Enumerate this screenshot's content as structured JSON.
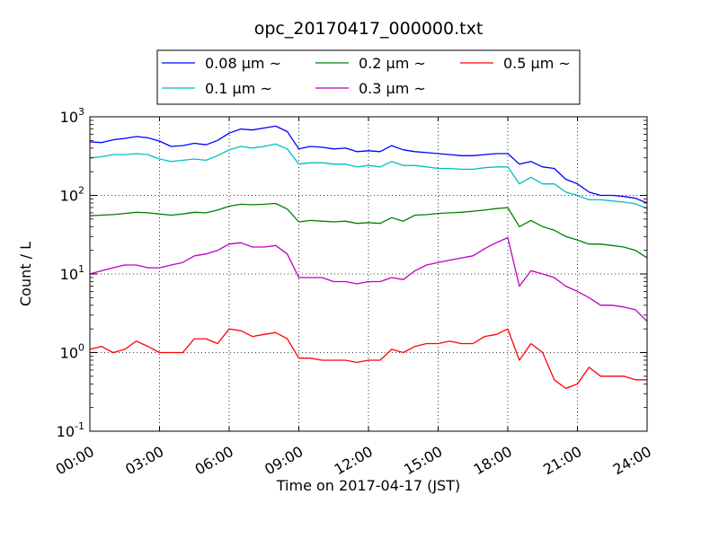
{
  "chart_data": {
    "type": "line",
    "title": "opc_20170417_000000.txt",
    "xlabel": "Time on 2017-04-17 (JST)",
    "ylabel": "Count / L",
    "yscale": "log",
    "xlim": [
      0,
      24
    ],
    "ylim": [
      0.1,
      1000
    ],
    "grid": true,
    "legend_position": "top",
    "x_ticks": [
      0,
      3,
      6,
      9,
      12,
      15,
      18,
      21,
      24
    ],
    "x_tick_labels": [
      "00:00",
      "03:00",
      "06:00",
      "09:00",
      "12:00",
      "15:00",
      "18:00",
      "21:00",
      "24:00"
    ],
    "y_ticks": [
      0.1,
      1,
      10,
      100,
      1000
    ],
    "y_tick_labels": [
      {
        "base": "10",
        "exp": "-1"
      },
      {
        "base": "10",
        "exp": "0"
      },
      {
        "base": "10",
        "exp": "1"
      },
      {
        "base": "10",
        "exp": "2"
      },
      {
        "base": "10",
        "exp": "3"
      }
    ],
    "x": [
      0,
      0.5,
      1,
      1.5,
      2,
      2.5,
      3,
      3.5,
      4,
      4.5,
      5,
      5.5,
      6,
      6.5,
      7,
      7.5,
      8,
      8.5,
      9,
      9.5,
      10,
      10.5,
      11,
      11.5,
      12,
      12.5,
      13,
      13.5,
      14,
      14.5,
      15,
      15.5,
      16,
      16.5,
      17,
      17.5,
      18,
      18.5,
      19,
      19.5,
      20,
      20.5,
      21,
      21.5,
      22,
      22.5,
      23,
      23.5,
      24
    ],
    "series": [
      {
        "name": "0.08 μm ~",
        "color": "#0000ff",
        "values": [
          480,
          470,
          510,
          530,
          560,
          540,
          490,
          420,
          430,
          460,
          440,
          500,
          620,
          700,
          680,
          720,
          760,
          650,
          390,
          420,
          410,
          390,
          400,
          360,
          370,
          360,
          430,
          380,
          360,
          350,
          340,
          330,
          320,
          320,
          330,
          340,
          340,
          250,
          270,
          230,
          220,
          160,
          140,
          110,
          100,
          100,
          97,
          92,
          80
        ]
      },
      {
        "name": "0.1 μm ~",
        "color": "#00bfbf",
        "values": [
          300,
          310,
          330,
          330,
          340,
          330,
          290,
          270,
          280,
          290,
          280,
          320,
          380,
          420,
          400,
          420,
          450,
          390,
          250,
          260,
          260,
          250,
          250,
          230,
          240,
          230,
          270,
          240,
          240,
          230,
          220,
          220,
          215,
          215,
          225,
          230,
          230,
          140,
          170,
          140,
          140,
          110,
          100,
          88,
          88,
          85,
          82,
          78,
          68
        ]
      },
      {
        "name": "0.2 μm ~",
        "color": "#008000",
        "values": [
          55,
          56,
          57,
          59,
          61,
          60,
          58,
          56,
          58,
          61,
          60,
          65,
          73,
          77,
          76,
          77,
          79,
          67,
          46,
          48,
          47,
          46,
          47,
          44,
          45,
          44,
          52,
          47,
          56,
          57,
          59,
          60,
          61,
          63,
          65,
          68,
          70,
          40,
          48,
          40,
          36,
          30,
          27,
          24,
          24,
          23,
          22,
          20,
          16
        ]
      },
      {
        "name": "0.3 μm ~",
        "color": "#bf00bf",
        "values": [
          10,
          11,
          12,
          13,
          13,
          12,
          12,
          13,
          14,
          17,
          18,
          20,
          24,
          25,
          22,
          22,
          23,
          18,
          9,
          9,
          9,
          8,
          8,
          7.5,
          8,
          8,
          9,
          8.5,
          11,
          13,
          14,
          15,
          16,
          17,
          21,
          25,
          29,
          7,
          11,
          10,
          9,
          7,
          6,
          5,
          4,
          4,
          3.8,
          3.5,
          2.5
        ]
      },
      {
        "name": "0.5 μm ~",
        "color": "#ff0000",
        "values": [
          1.1,
          1.2,
          1.0,
          1.1,
          1.4,
          1.2,
          1.0,
          1.0,
          1.0,
          1.5,
          1.5,
          1.3,
          2.0,
          1.9,
          1.6,
          1.7,
          1.8,
          1.5,
          0.85,
          0.85,
          0.8,
          0.8,
          0.8,
          0.75,
          0.8,
          0.8,
          1.1,
          1.0,
          1.2,
          1.3,
          1.3,
          1.4,
          1.3,
          1.3,
          1.6,
          1.7,
          2.0,
          0.8,
          1.3,
          1.0,
          0.45,
          0.35,
          0.4,
          0.65,
          0.5,
          0.5,
          0.5,
          0.45,
          0.45
        ]
      }
    ]
  }
}
